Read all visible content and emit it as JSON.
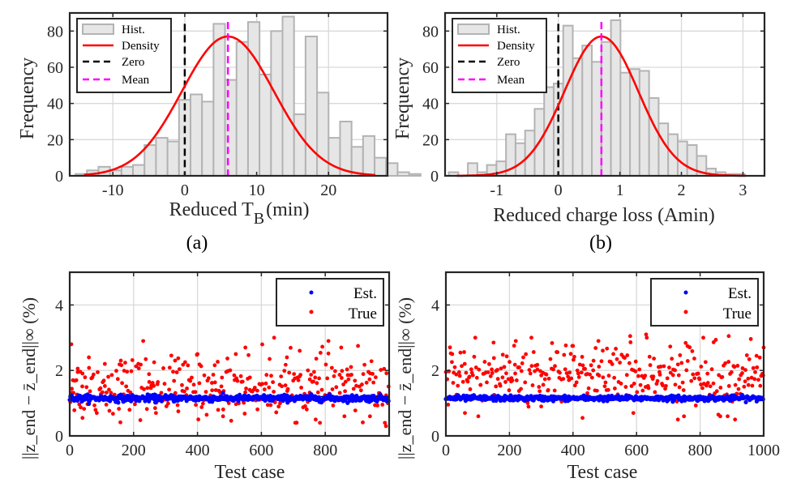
{
  "figure": {
    "captions": [
      "(a)",
      "(b)"
    ]
  },
  "chart_data": [
    {
      "id": "hist-a",
      "type": "bar",
      "title": "",
      "xlabel": "Reduced T_B (min)",
      "xlabel_main": "Reduced T",
      "xlabel_sub": "B",
      "xlabel_tail": "(min)",
      "ylabel": "Frequency",
      "xlim": [
        -16,
        28.2
      ],
      "ylim": [
        0,
        90
      ],
      "xticks": [
        -10,
        0,
        10,
        20
      ],
      "xtick_labels": [
        "-10",
        "0",
        "10",
        "20"
      ],
      "yticks": [
        0,
        20,
        40,
        60,
        80
      ],
      "ytick_labels": [
        "0",
        "20",
        "40",
        "60",
        "80"
      ],
      "grid": true,
      "legend": {
        "placement": "top-left",
        "entries": [
          "Hist.",
          "Density",
          "Zero",
          "Mean"
        ]
      },
      "bin_start": -15.2,
      "bin_width": 1.6,
      "values": [
        1,
        3,
        5,
        3,
        5,
        6,
        17,
        21,
        19,
        42,
        45,
        41,
        84,
        53,
        74,
        85,
        56,
        80,
        88,
        34,
        77,
        46,
        21,
        30,
        16,
        22,
        10,
        7,
        2,
        1
      ],
      "density": {
        "mean": 6.0,
        "std": 6.4,
        "peak": 77,
        "xrange": [
          -14,
          26.5
        ]
      },
      "zero_line": 0,
      "mean_line": 6.0,
      "colors": {
        "bar_fill": "#e6e6e6",
        "bar_edge": "#b3b3b3",
        "density": "#ff0000",
        "zero": "#000000",
        "mean": "#ff00ff"
      }
    },
    {
      "id": "hist-b",
      "type": "bar",
      "title": "",
      "xlabel": "Reduced charge loss (Amin)",
      "ylabel": "Frequency",
      "xlim": [
        -1.84,
        3.35
      ],
      "ylim": [
        0,
        90
      ],
      "xticks": [
        -1,
        0,
        1,
        2,
        3
      ],
      "xtick_labels": [
        "-1",
        "0",
        "1",
        "2",
        "3"
      ],
      "yticks": [
        0,
        20,
        40,
        60,
        80
      ],
      "ytick_labels": [
        "0",
        "20",
        "40",
        "60",
        "80"
      ],
      "grid": true,
      "legend": {
        "placement": "top-left",
        "entries": [
          "Hist.",
          "Density",
          "Zero",
          "Mean"
        ]
      },
      "bin_start": -1.78,
      "bin_width": 0.155,
      "values": [
        2,
        0,
        7,
        2,
        6,
        8,
        23,
        18,
        25,
        37,
        49,
        51,
        83,
        65,
        72,
        63,
        74,
        86,
        57,
        59,
        58,
        43,
        29,
        23,
        19,
        17,
        11,
        4,
        2,
        1,
        1
      ],
      "density": {
        "mean": 0.7,
        "std": 0.6,
        "peak": 77,
        "xrange": [
          -1.65,
          3.05
        ]
      },
      "zero_line": 0,
      "mean_line": 0.7,
      "colors": {
        "bar_fill": "#e6e6e6",
        "bar_edge": "#b3b3b3",
        "density": "#ff0000",
        "zero": "#000000",
        "mean": "#ff00ff"
      }
    },
    {
      "id": "scatter-a",
      "type": "scatter",
      "title": "",
      "xlabel": "Test case",
      "ylabel": "||z_end − z̄_end||∞ (%)",
      "xlim": [
        0,
        1000
      ],
      "ylim": [
        0,
        5
      ],
      "xticks": [
        0,
        200,
        400,
        600,
        800
      ],
      "xtick_labels": [
        "0",
        "200",
        "400",
        "600",
        "800"
      ],
      "yticks": [
        0,
        2,
        4
      ],
      "ytick_labels": [
        "0",
        "2",
        "4"
      ],
      "grid": true,
      "legend": {
        "placement": "top-right",
        "entries": [
          "Est.",
          "True"
        ]
      },
      "series": [
        {
          "name": "Est.",
          "color": "#0000ff",
          "summary": {
            "center": 1.15,
            "spread": 0.05,
            "n": 1000
          }
        },
        {
          "name": "True",
          "color": "#ff0000",
          "summary": {
            "mean": 1.5,
            "min": 0.3,
            "max": 3.0,
            "n": 1000
          },
          "sample_points": [
            [
              5,
              2.8
            ],
            [
              10,
              1.7
            ],
            [
              25,
              1.95
            ],
            [
              40,
              0.55
            ],
            [
              60,
              2.4
            ],
            [
              110,
              2.2
            ],
            [
              160,
              2.3
            ],
            [
              230,
              2.9
            ],
            [
              270,
              0.7
            ],
            [
              330,
              2.3
            ],
            [
              340,
              0.75
            ],
            [
              400,
              2.5
            ],
            [
              480,
              0.6
            ],
            [
              520,
              2.5
            ],
            [
              550,
              2.7
            ],
            [
              640,
              3.0
            ],
            [
              680,
              2.4
            ],
            [
              720,
              2.6
            ],
            [
              770,
              0.5
            ],
            [
              810,
              2.9
            ],
            [
              850,
              2.7
            ],
            [
              860,
              0.6
            ],
            [
              940,
              0.6
            ],
            [
              990,
              0.3
            ]
          ]
        }
      ],
      "reference_line": 1.2
    },
    {
      "id": "scatter-b",
      "type": "scatter",
      "title": "",
      "xlabel": "Test case",
      "ylabel": "||z_end − z̄_end||∞ (%)",
      "xlim": [
        0,
        1000
      ],
      "ylim": [
        0,
        5
      ],
      "xticks": [
        0,
        200,
        400,
        600,
        800,
        1000
      ],
      "xtick_labels": [
        "0",
        "200",
        "400",
        "600",
        "800",
        "1000"
      ],
      "yticks": [
        0,
        2,
        4
      ],
      "ytick_labels": [
        "0",
        "2",
        "4"
      ],
      "grid": true,
      "legend": {
        "placement": "top-right",
        "entries": [
          "Est.",
          "True"
        ]
      },
      "series": [
        {
          "name": "Est.",
          "color": "#0000ff",
          "summary": {
            "center": 1.15,
            "spread": 0.04,
            "n": 1000
          }
        },
        {
          "name": "True",
          "color": "#ff0000",
          "summary": {
            "mean": 1.9,
            "min": 0.5,
            "max": 3.1,
            "n": 1000
          },
          "sample_points": [
            [
              20,
              2.5
            ],
            [
              60,
              0.7
            ],
            [
              150,
              2.85
            ],
            [
              220,
              2.9
            ],
            [
              300,
              0.9
            ],
            [
              400,
              2.75
            ],
            [
              430,
              0.55
            ],
            [
              480,
              2.9
            ],
            [
              580,
              3.05
            ],
            [
              590,
              0.7
            ],
            [
              630,
              3.1
            ],
            [
              730,
              0.5
            ],
            [
              810,
              3.0
            ],
            [
              890,
              3.05
            ],
            [
              910,
              0.5
            ],
            [
              1000,
              2.7
            ]
          ]
        }
      ],
      "reference_line": 1.2
    }
  ]
}
